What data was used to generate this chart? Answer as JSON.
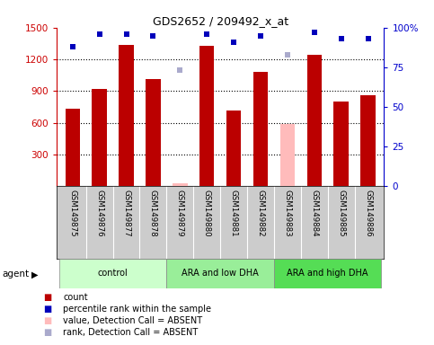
{
  "title": "GDS2652 / 209492_x_at",
  "samples": [
    "GSM149875",
    "GSM149876",
    "GSM149877",
    "GSM149878",
    "GSM149879",
    "GSM149880",
    "GSM149881",
    "GSM149882",
    "GSM149883",
    "GSM149884",
    "GSM149885",
    "GSM149886"
  ],
  "count_values": [
    730,
    920,
    1340,
    1010,
    null,
    1330,
    720,
    1080,
    null,
    1240,
    800,
    860
  ],
  "count_absent": [
    null,
    null,
    null,
    null,
    30,
    null,
    null,
    null,
    590,
    null,
    null,
    null
  ],
  "rank_values": [
    88,
    96,
    96,
    95,
    null,
    96,
    91,
    95,
    null,
    97,
    93,
    93
  ],
  "rank_absent": [
    null,
    null,
    null,
    null,
    73,
    null,
    null,
    null,
    83,
    null,
    null,
    null
  ],
  "groups": [
    {
      "label": "control",
      "start": 0,
      "end": 3,
      "color": "#ccffcc"
    },
    {
      "label": "ARA and low DHA",
      "start": 4,
      "end": 7,
      "color": "#99ee99"
    },
    {
      "label": "ARA and high DHA",
      "start": 8,
      "end": 11,
      "color": "#55dd55"
    }
  ],
  "ylim_left": [
    0,
    1500
  ],
  "ylim_right": [
    0,
    100
  ],
  "yticks_left": [
    300,
    600,
    900,
    1200,
    1500
  ],
  "yticks_right": [
    0,
    25,
    50,
    75,
    100
  ],
  "bar_color": "#bb0000",
  "bar_absent_color": "#ffbbbb",
  "dot_color": "#0000bb",
  "dot_absent_color": "#aaaacc",
  "grid_color": "#000000",
  "plot_bg_color": "#ffffff",
  "label_bg_color": "#cccccc",
  "title_color": "#000000",
  "left_axis_color": "#cc0000",
  "right_axis_color": "#0000cc"
}
